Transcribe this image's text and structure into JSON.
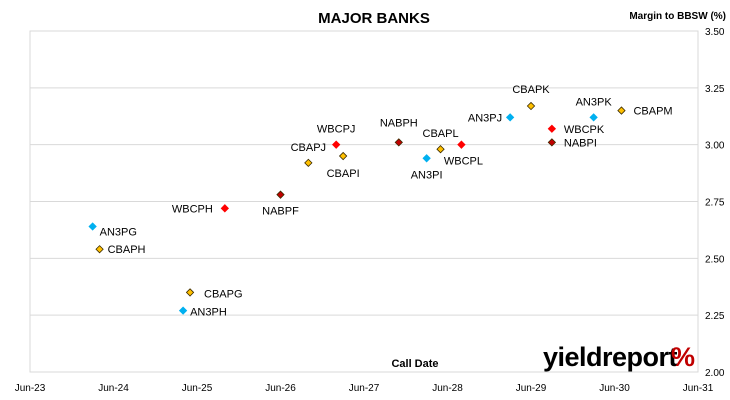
{
  "chart_data": {
    "type": "scatter",
    "title": "MAJOR BANKS",
    "ylabel": "Margin to BBSW (%)",
    "xlabel": "Call Date",
    "ylim": [
      2.0,
      3.5
    ],
    "y_ticks": [
      "2.00",
      "2.25",
      "2.50",
      "2.75",
      "3.00",
      "3.25",
      "3.50"
    ],
    "x_ticks": [
      "Jun-23",
      "Jun-24",
      "Jun-25",
      "Jun-26",
      "Jun-27",
      "Jun-28",
      "Jun-29",
      "Jun-30",
      "Jun-31"
    ],
    "xlim": [
      "2023-06",
      "2031-06"
    ],
    "grid": "horizontal",
    "series": [
      {
        "color": "#00b0f0",
        "points": [
          {
            "label": "AN3PG",
            "x": "2024-03",
            "y": 2.64
          },
          {
            "label": "AN3PH",
            "x": "2025-04",
            "y": 2.27
          },
          {
            "label": "AN3PI",
            "x": "2028-03",
            "y": 2.94
          },
          {
            "label": "AN3PJ",
            "x": "2029-03",
            "y": 3.12
          },
          {
            "label": "AN3PK",
            "x": "2030-03",
            "y": 3.12
          }
        ]
      },
      {
        "color": "#ffc000",
        "points": [
          {
            "label": "CBAPH",
            "x": "2024-04",
            "y": 2.54
          },
          {
            "label": "CBAPG",
            "x": "2025-05",
            "y": 2.35
          },
          {
            "label": "CBAPJ",
            "x": "2026-10",
            "y": 2.92
          },
          {
            "label": "CBAPI",
            "x": "2027-03",
            "y": 2.95
          },
          {
            "label": "CBAPL",
            "x": "2028-05",
            "y": 2.98
          },
          {
            "label": "CBAPK",
            "x": "2029-06",
            "y": 3.17
          },
          {
            "label": "CBAPM",
            "x": "2030-07",
            "y": 3.15
          }
        ]
      },
      {
        "color": "#ff0000",
        "points": [
          {
            "label": "WBCPH",
            "x": "2025-10",
            "y": 2.72
          },
          {
            "label": "WBCPJ",
            "x": "2027-02",
            "y": 3.0
          },
          {
            "label": "WBCPL",
            "x": "2028-08",
            "y": 3.0
          },
          {
            "label": "WBCPK",
            "x": "2029-09",
            "y": 3.07
          }
        ]
      },
      {
        "color": "#c00000",
        "points": [
          {
            "label": "NABPF",
            "x": "2026-06",
            "y": 2.78
          },
          {
            "label": "NABPH",
            "x": "2027-11",
            "y": 3.01
          },
          {
            "label": "NABPI",
            "x": "2029-09",
            "y": 3.01
          }
        ]
      }
    ]
  },
  "logo": {
    "text": "yieldreport",
    "symbol": "%"
  }
}
